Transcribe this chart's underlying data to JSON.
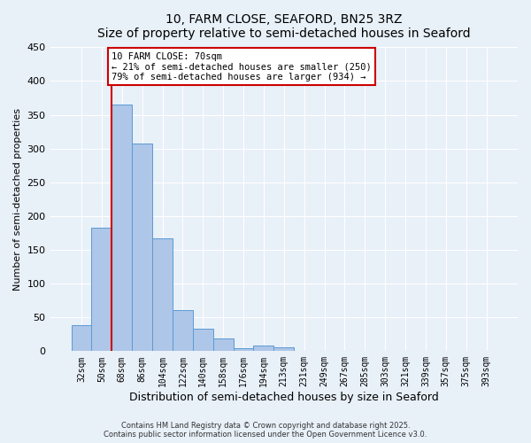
{
  "title": "10, FARM CLOSE, SEAFORD, BN25 3RZ",
  "subtitle": "Size of property relative to semi-detached houses in Seaford",
  "xlabel": "Distribution of semi-detached houses by size in Seaford",
  "ylabel": "Number of semi-detached properties",
  "bar_labels": [
    "32sqm",
    "50sqm",
    "68sqm",
    "86sqm",
    "104sqm",
    "122sqm",
    "140sqm",
    "158sqm",
    "176sqm",
    "194sqm",
    "213sqm",
    "231sqm",
    "249sqm",
    "267sqm",
    "285sqm",
    "303sqm",
    "321sqm",
    "339sqm",
    "357sqm",
    "375sqm",
    "393sqm"
  ],
  "bar_values": [
    38,
    183,
    365,
    307,
    167,
    61,
    33,
    19,
    5,
    8,
    6,
    0,
    0,
    0,
    0,
    0,
    0,
    0,
    0,
    0,
    0
  ],
  "bar_color": "#aec6e8",
  "bar_edge_color": "#5b9bd5",
  "background_color": "#e8f0f8",
  "grid_color": "#ffffff",
  "vline_index": 2,
  "vline_color": "#cc0000",
  "annotation_title": "10 FARM CLOSE: 70sqm",
  "annotation_line1": "← 21% of semi-detached houses are smaller (250)",
  "annotation_line2": "79% of semi-detached houses are larger (934) →",
  "annotation_box_color": "#cc0000",
  "ylim": [
    0,
    450
  ],
  "yticks": [
    0,
    50,
    100,
    150,
    200,
    250,
    300,
    350,
    400,
    450
  ],
  "footnote1": "Contains HM Land Registry data © Crown copyright and database right 2025.",
  "footnote2": "Contains public sector information licensed under the Open Government Licence v3.0."
}
